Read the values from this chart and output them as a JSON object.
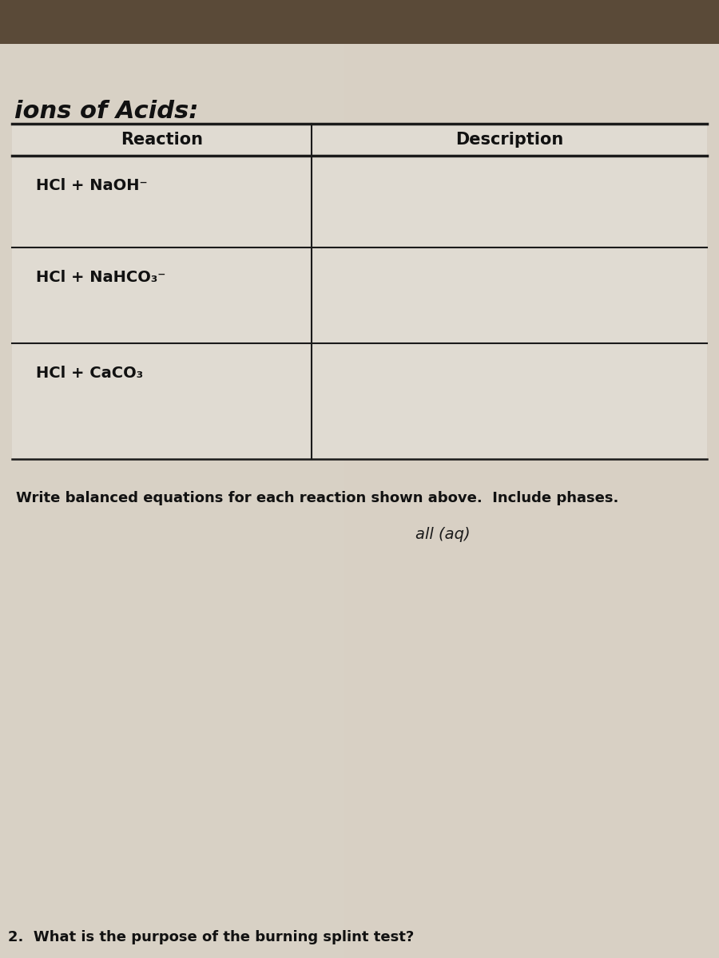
{
  "title": "ions of Acids:",
  "col1_header": "Reaction",
  "col2_header": "Description",
  "reactions": [
    "HCl + NaOH⁻",
    "HCl + NaHCO₃⁻",
    "HCl + CaCO₃"
  ],
  "instruction_text": "Write balanced equations for each reaction shown above.  Include phases.",
  "handwritten_note": "all (aq)",
  "question2": "2.  What is the purpose of the burning splint test?",
  "bg_color": "#7a6a55",
  "paper_top_color": "#b8a890",
  "paper_color": "#d8d0c4",
  "table_bg": "#e0dbd2",
  "line_color": "#1a1a1a",
  "text_color": "#111111",
  "title_color": "#111111",
  "fig_width": 9.0,
  "fig_height": 12.0
}
